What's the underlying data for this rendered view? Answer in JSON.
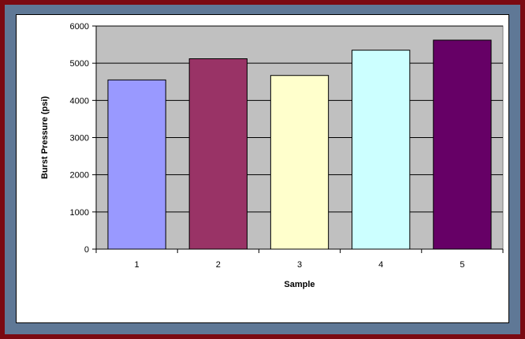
{
  "colors": {
    "outer_border": "#7b0a12",
    "inner_border": "#5f7896",
    "plot_background": "#c0c0c0",
    "bar_colors": [
      "#9999ff",
      "#993366",
      "#ffffcc",
      "#ccffff",
      "#660066"
    ]
  },
  "chart_data": {
    "type": "bar",
    "title": "",
    "xlabel": "Sample",
    "ylabel": "Burst Pressure (psi)",
    "categories": [
      "1",
      "2",
      "3",
      "4",
      "5"
    ],
    "values": [
      4550,
      5120,
      4670,
      5350,
      5620
    ],
    "ylim": [
      0,
      6000
    ],
    "yticks": [
      "0",
      "1000",
      "2000",
      "3000",
      "4000",
      "5000",
      "6000"
    ],
    "grid": true,
    "legend": "none"
  }
}
